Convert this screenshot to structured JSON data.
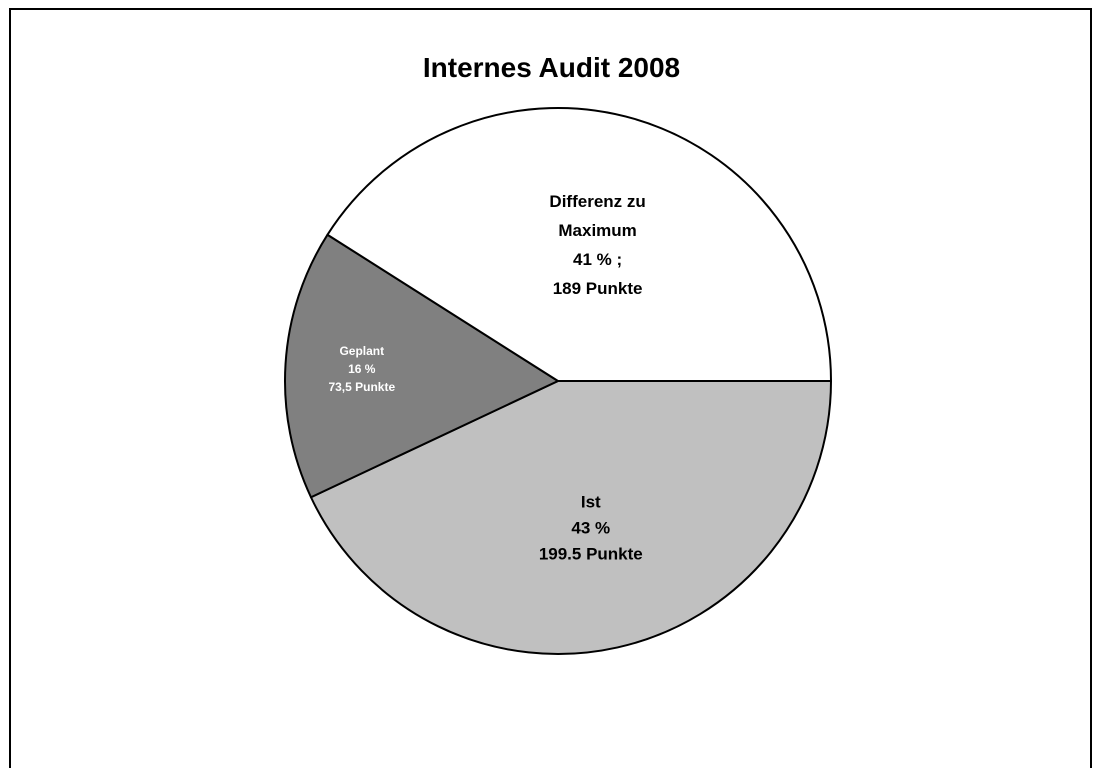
{
  "chart_data": {
    "type": "pie",
    "title": "Internes Audit 2008",
    "slices": [
      {
        "label": "Ist",
        "value": 43,
        "label_lines": [
          "Ist",
          "43 %",
          "199.5 Punkte"
        ],
        "color": "#c0c0c0",
        "text_color": "#000000"
      },
      {
        "label": "Geplant",
        "value": 16,
        "label_lines": [
          "Geplant",
          "16 %",
          "73,5 Punkte"
        ],
        "color": "#808080",
        "text_color": "#ffffff"
      },
      {
        "label": "Differenz zu Maximum",
        "value": 41,
        "label_lines": [
          "Differenz zu",
          "Maximum",
          "41 % ;",
          "189 Punkte"
        ],
        "color": "#ffffff",
        "text_color": "#000000"
      }
    ]
  }
}
